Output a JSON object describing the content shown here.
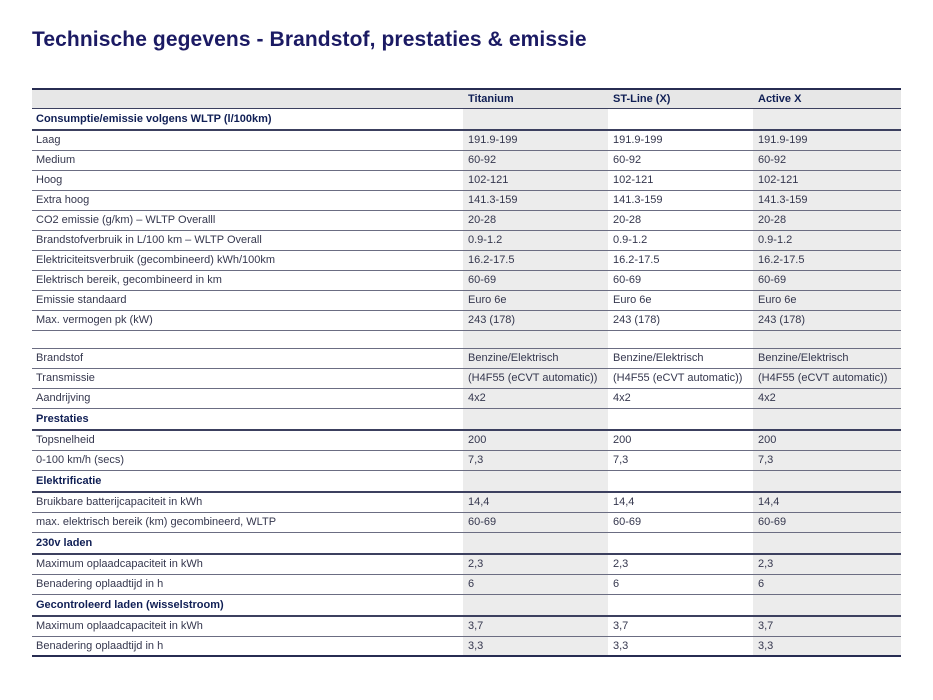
{
  "page": {
    "title": "Technische gegevens - Brandstof, prestaties & emissie"
  },
  "colors": {
    "title_navy": "#1b1a63",
    "section_navy": "#101f55",
    "body_text": "#35374e",
    "column_band_gray": "#ececec",
    "header_row_gray": "#e7e7e7",
    "row_line": "#6b6d82",
    "heavy_line": "#272c52"
  },
  "table": {
    "column_headers": [
      "Titanium",
      "ST-Line (X)",
      "Active X"
    ],
    "rows": [
      {
        "type": "section",
        "label": "Consumptie/emissie volgens WLTP (l/100km)"
      },
      {
        "type": "row",
        "label": "Laag",
        "values": [
          "191.9-199",
          "191.9-199",
          "191.9-199"
        ]
      },
      {
        "type": "row",
        "label": "Medium",
        "values": [
          "60-92",
          "60-92",
          "60-92"
        ]
      },
      {
        "type": "row",
        "label": "Hoog",
        "values": [
          "102-121",
          "102-121",
          "102-121"
        ]
      },
      {
        "type": "row",
        "label": "Extra hoog",
        "values": [
          "141.3-159",
          "141.3-159",
          "141.3-159"
        ]
      },
      {
        "type": "row",
        "label": "CO2 emissie (g/km) – WLTP Overalll",
        "values": [
          "20-28",
          "20-28",
          "20-28"
        ]
      },
      {
        "type": "row",
        "label": "Brandstofverbruik in L/100 km – WLTP Overall",
        "values": [
          "0.9-1.2",
          "0.9-1.2",
          "0.9-1.2"
        ]
      },
      {
        "type": "row",
        "label": "Elektriciteitsverbruik (gecombineerd) kWh/100km",
        "values": [
          "16.2-17.5",
          "16.2-17.5",
          "16.2-17.5"
        ]
      },
      {
        "type": "row",
        "label": "Elektrisch bereik, gecombineerd in km",
        "values": [
          "60-69",
          "60-69",
          "60-69"
        ]
      },
      {
        "type": "row",
        "label": "Emissie standaard",
        "values": [
          "Euro 6e",
          "Euro 6e",
          "Euro 6e"
        ]
      },
      {
        "type": "row",
        "label": "Max. vermogen pk (kW)",
        "values": [
          "243 (178)",
          "243 (178)",
          "243 (178)"
        ]
      },
      {
        "type": "spacer",
        "label": ""
      },
      {
        "type": "row",
        "label": "Brandstof",
        "values": [
          "Benzine/Elektrisch",
          "Benzine/Elektrisch",
          "Benzine/Elektrisch"
        ]
      },
      {
        "type": "row",
        "label": "Transmissie",
        "values": [
          "(H4F55 (eCVT automatic))",
          "(H4F55 (eCVT automatic))",
          "(H4F55 (eCVT automatic))"
        ]
      },
      {
        "type": "row",
        "label": "Aandrijving",
        "values": [
          "4x2",
          "4x2",
          "4x2"
        ]
      },
      {
        "type": "section",
        "label": "Prestaties"
      },
      {
        "type": "row",
        "label": "Topsnelheid",
        "values": [
          "200",
          "200",
          "200"
        ]
      },
      {
        "type": "row",
        "label": "0-100 km/h (secs)",
        "values": [
          "7,3",
          "7,3",
          "7,3"
        ]
      },
      {
        "type": "section",
        "label": "Elektrificatie"
      },
      {
        "type": "row",
        "label": "Bruikbare batterijcapaciteit in kWh",
        "values": [
          "14,4",
          "14,4",
          "14,4"
        ]
      },
      {
        "type": "row",
        "label": "max. elektrisch bereik (km) gecombineerd, WLTP",
        "values": [
          "60-69",
          "60-69",
          "60-69"
        ]
      },
      {
        "type": "section",
        "label": "230v laden"
      },
      {
        "type": "row",
        "label": "Maximum oplaadcapaciteit in kWh",
        "values": [
          "2,3",
          "2,3",
          "2,3"
        ]
      },
      {
        "type": "row",
        "label": "Benadering oplaadtijd in h",
        "values": [
          "6",
          "6",
          "6"
        ]
      },
      {
        "type": "section",
        "label": "Gecontroleerd laden (wisselstroom)"
      },
      {
        "type": "row",
        "label": "Maximum oplaadcapaciteit in kWh",
        "values": [
          "3,7",
          "3,7",
          "3,7"
        ]
      },
      {
        "type": "row",
        "label": "Benadering oplaadtijd in h",
        "values": [
          "3,3",
          "3,3",
          "3,3"
        ]
      }
    ]
  }
}
